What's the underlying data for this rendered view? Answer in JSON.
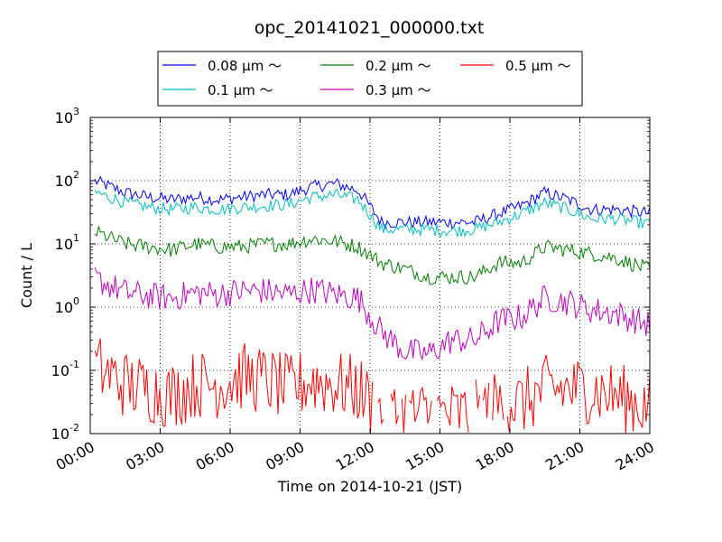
{
  "chart_data": {
    "type": "line",
    "title": "opc_20141021_000000.txt",
    "xlabel": "Time on 2014-10-21 (JST)",
    "ylabel": "Count / L",
    "y_scale": "log",
    "ylim": [
      0.01,
      1000
    ],
    "xlim": [
      "2014-10-21 00:00",
      "2014-10-22 00:00"
    ],
    "x_ticks": [
      "00:00",
      "03:00",
      "06:00",
      "09:00",
      "12:00",
      "15:00",
      "18:00",
      "21:00",
      "24:00"
    ],
    "y_ticks": [
      {
        "base": "10",
        "exp": "-2"
      },
      {
        "base": "10",
        "exp": "-1"
      },
      {
        "base": "10",
        "exp": "0"
      },
      {
        "base": "10",
        "exp": "1"
      },
      {
        "base": "10",
        "exp": "2"
      },
      {
        "base": "10",
        "exp": "3"
      }
    ],
    "grid": true,
    "legend_position": "top",
    "x": [
      "00:30",
      "01:30",
      "02:30",
      "03:30",
      "04:30",
      "05:30",
      "06:30",
      "07:30",
      "08:30",
      "09:30",
      "10:30",
      "11:30",
      "12:30",
      "13:30",
      "14:30",
      "15:30",
      "16:30",
      "17:30",
      "18:30",
      "19:30",
      "20:30",
      "21:30",
      "22:30",
      "23:30"
    ],
    "series": [
      {
        "name": "0.08 μm ～",
        "color": "#0000ff",
        "values": [
          90,
          65,
          55,
          50,
          55,
          50,
          55,
          60,
          60,
          80,
          90,
          70,
          22,
          22,
          22,
          22,
          22,
          30,
          40,
          65,
          50,
          35,
          35,
          32
        ]
      },
      {
        "name": "0.1 μm ～",
        "color": "#00bfbf",
        "values": [
          60,
          45,
          38,
          35,
          38,
          35,
          38,
          40,
          42,
          55,
          60,
          50,
          17,
          17,
          17,
          16,
          17,
          22,
          30,
          45,
          35,
          25,
          25,
          22
        ]
      },
      {
        "name": "0.2 μm ～",
        "color": "#008000",
        "values": [
          14,
          10,
          9,
          8,
          10,
          9,
          9,
          10,
          10,
          12,
          11,
          9,
          5,
          4,
          3,
          3,
          3,
          5,
          5,
          9,
          8,
          7,
          6,
          4.5
        ]
      },
      {
        "name": "0.3 μm ～",
        "color": "#bf00bf",
        "values": [
          2.5,
          1.7,
          1.5,
          1.4,
          1.7,
          1.6,
          1.8,
          1.8,
          1.6,
          1.9,
          1.6,
          1.4,
          0.4,
          0.2,
          0.18,
          0.3,
          0.3,
          0.6,
          0.7,
          1.4,
          1.2,
          0.9,
          0.8,
          0.6
        ]
      },
      {
        "name": "0.5 μm ～",
        "color": "#ff0000",
        "values": [
          0.1,
          0.06,
          0.05,
          0.04,
          0.06,
          0.06,
          0.08,
          0.07,
          0.05,
          0.07,
          0.06,
          0.05,
          0.02,
          0.02,
          0.02,
          0.02,
          0.02,
          0.03,
          0.03,
          0.05,
          0.05,
          0.05,
          0.04,
          0.03
        ]
      }
    ]
  }
}
